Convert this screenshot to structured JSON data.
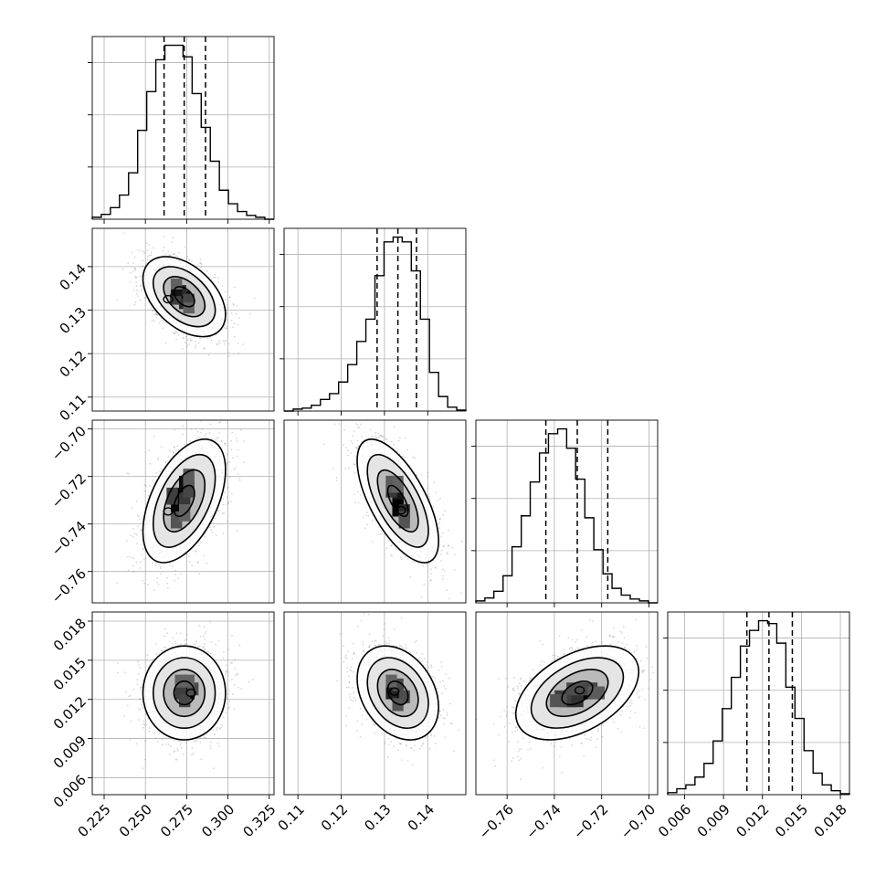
{
  "figure": {
    "title": "",
    "grid": true,
    "colors": {
      "line": "#000000",
      "points": "#8c8c8c",
      "grid": "#b0b0b0",
      "background": "#ffffff"
    }
  },
  "chart_data": {
    "type": "corner",
    "parameters": [
      {
        "name": "",
        "range": [
          0.2178,
          0.3279
        ],
        "ticks": [
          0.225,
          0.25,
          0.275,
          0.3,
          0.325
        ],
        "tick_labels": [
          "0.225",
          "0.250",
          "0.275",
          "0.300",
          "0.325"
        ]
      },
      {
        "name": "",
        "range": [
          0.1068,
          0.1488
        ],
        "ticks": [
          0.11,
          0.12,
          0.13,
          0.14
        ],
        "tick_labels": [
          "0.11",
          "0.12",
          "0.13",
          "0.14"
        ]
      },
      {
        "name": "",
        "range": [
          -0.7732,
          -0.6963
        ],
        "ticks": [
          -0.76,
          -0.74,
          -0.72,
          -0.7
        ],
        "tick_labels": [
          "−0.76",
          "−0.74",
          "−0.72",
          "−0.70"
        ]
      },
      {
        "name": "",
        "range": [
          0.0047,
          0.0187
        ],
        "ticks": [
          0.006,
          0.009,
          0.012,
          0.015,
          0.018
        ],
        "tick_labels": [
          "0.006",
          "0.009",
          "0.012",
          "0.015",
          "0.018"
        ]
      }
    ],
    "marginals": [
      {
        "bin_edges": [
          0.2178,
          0.2233,
          0.2288,
          0.2343,
          0.2398,
          0.2453,
          0.2508,
          0.2563,
          0.2618,
          0.2673,
          0.2728,
          0.2783,
          0.2838,
          0.2893,
          0.2948,
          0.3003,
          0.3058,
          0.3113,
          0.3168,
          0.3223,
          0.3279
        ],
        "counts": [
          2,
          5,
          12,
          25,
          48,
          92,
          132,
          165,
          180,
          180,
          168,
          130,
          95,
          60,
          30,
          16,
          8,
          4,
          2,
          0
        ],
        "quantiles": [
          0.2613,
          0.2735,
          0.2864
        ]
      },
      {
        "bin_edges": [
          0.1068,
          0.1089,
          0.111,
          0.1131,
          0.1152,
          0.1173,
          0.1194,
          0.1215,
          0.1236,
          0.1257,
          0.1278,
          0.1299,
          0.132,
          0.1341,
          0.1362,
          0.1383,
          0.1404,
          0.1425,
          0.1446,
          0.1467,
          0.1488
        ],
        "counts": [
          0,
          2,
          3,
          6,
          12,
          18,
          30,
          48,
          72,
          95,
          140,
          175,
          180,
          175,
          145,
          95,
          40,
          15,
          4,
          1
        ],
        "quantiles": [
          0.1283,
          0.1331,
          0.1374
        ]
      },
      {
        "bin_edges": [
          -0.7732,
          -0.7694,
          -0.7656,
          -0.7617,
          -0.7579,
          -0.754,
          -0.7502,
          -0.7463,
          -0.7425,
          -0.7386,
          -0.7348,
          -0.731,
          -0.7271,
          -0.7233,
          -0.7194,
          -0.7156,
          -0.7117,
          -0.7079,
          -0.704,
          -0.7002,
          -0.6963
        ],
        "counts": [
          2,
          5,
          12,
          28,
          58,
          90,
          125,
          155,
          175,
          180,
          160,
          128,
          88,
          55,
          30,
          15,
          8,
          4,
          2,
          0
        ],
        "quantiles": [
          -0.7436,
          -0.7303,
          -0.7174
        ]
      },
      {
        "bin_edges": [
          0.0047,
          0.0054,
          0.0061,
          0.0068,
          0.0075,
          0.0082,
          0.0089,
          0.0096,
          0.0103,
          0.011,
          0.0117,
          0.0124,
          0.0131,
          0.0138,
          0.0145,
          0.0152,
          0.0159,
          0.0166,
          0.0173,
          0.018,
          0.0187
        ],
        "counts": [
          2,
          6,
          10,
          18,
          32,
          55,
          88,
          120,
          152,
          168,
          178,
          175,
          155,
          110,
          78,
          45,
          22,
          10,
          4,
          1
        ],
        "quantiles": [
          0.0108,
          0.0125,
          0.0143
        ]
      }
    ],
    "joint": [
      {
        "x": 0,
        "y": 1,
        "mean": [
          0.2735,
          0.1331
        ],
        "sd": [
          0.0125,
          0.0046
        ],
        "corr": -0.45,
        "cmin": [
          0.2638,
          0.1325
        ],
        "density": [
          [
            0.2738,
            0.1331,
            0.95
          ],
          [
            0.2713,
            0.1345,
            0.7
          ],
          [
            0.2738,
            0.1315,
            0.7
          ],
          [
            0.2683,
            0.1325,
            0.55
          ],
          [
            0.2688,
            0.1345,
            0.85
          ],
          [
            0.2763,
            0.1325,
            0.5
          ],
          [
            0.2688,
            0.136,
            0.3
          ],
          [
            0.2763,
            0.1305,
            0.3
          ]
        ]
      },
      {
        "x": 0,
        "y": 2,
        "mean": [
          0.2735,
          -0.7303
        ],
        "sd": [
          0.0125,
          0.013
        ],
        "corr": 0.5,
        "cmin": [
          0.2638,
          -0.7347
        ],
        "density": [
          [
            0.2713,
            -0.7283,
            1.0
          ],
          [
            0.2738,
            -0.7233,
            0.9
          ],
          [
            0.2688,
            -0.7333,
            0.95
          ],
          [
            0.2738,
            -0.7303,
            0.6
          ],
          [
            0.2663,
            -0.7283,
            0.55
          ],
          [
            0.2763,
            -0.7253,
            0.5
          ],
          [
            0.2688,
            -0.7383,
            0.4
          ],
          [
            0.2738,
            -0.7353,
            0.3
          ],
          [
            0.2763,
            -0.7203,
            0.35
          ]
        ]
      },
      {
        "x": 1,
        "y": 2,
        "mean": [
          0.1331,
          -0.7303
        ],
        "sd": [
          0.0047,
          0.013
        ],
        "corr": -0.65,
        "cmin": [
          0.1338,
          -0.7342
        ],
        "density": [
          [
            0.1331,
            -0.7283,
            0.85
          ],
          [
            0.1331,
            -0.7333,
            1.0
          ],
          [
            0.1316,
            -0.7253,
            0.6
          ],
          [
            0.1346,
            -0.7353,
            0.7
          ],
          [
            0.1346,
            -0.7383,
            0.4
          ],
          [
            0.1316,
            -0.7233,
            0.35
          ],
          [
            0.1331,
            -0.7233,
            0.3
          ]
        ]
      },
      {
        "x": 0,
        "y": 3,
        "mean": [
          0.2735,
          0.0125
        ],
        "sd": [
          0.0125,
          0.0018
        ],
        "corr": 0.0,
        "cmin": [
          0.2776,
          0.0125
        ],
        "density": [
          [
            0.2738,
            0.0128,
            0.8
          ],
          [
            0.2763,
            0.0125,
            0.95
          ],
          [
            0.2713,
            0.0125,
            0.55
          ],
          [
            0.2738,
            0.0119,
            0.5
          ],
          [
            0.2788,
            0.0128,
            0.45
          ],
          [
            0.2763,
            0.0134,
            0.3
          ],
          [
            0.2713,
            0.0134,
            0.3
          ]
        ]
      },
      {
        "x": 1,
        "y": 3,
        "mean": [
          0.1331,
          0.0125
        ],
        "sd": [
          0.0047,
          0.0018
        ],
        "corr": -0.3,
        "cmin": [
          0.1323,
          0.0126
        ],
        "density": [
          [
            0.1331,
            0.0125,
            0.95
          ],
          [
            0.1316,
            0.0125,
            0.75
          ],
          [
            0.1331,
            0.0131,
            0.5
          ],
          [
            0.1346,
            0.0122,
            0.45
          ],
          [
            0.1331,
            0.0116,
            0.4
          ],
          [
            0.1316,
            0.0134,
            0.3
          ]
        ]
      },
      {
        "x": 2,
        "y": 3,
        "mean": [
          -0.7303,
          0.0125
        ],
        "sd": [
          0.013,
          0.0018
        ],
        "corr": 0.45,
        "cmin": [
          -0.7293,
          0.0127
        ],
        "density": [
          [
            -0.7283,
            0.0125,
            1.0
          ],
          [
            -0.7343,
            0.0119,
            0.75
          ],
          [
            -0.7313,
            0.0119,
            0.65
          ],
          [
            -0.7363,
            0.0122,
            0.55
          ],
          [
            -0.7253,
            0.0128,
            0.5
          ],
          [
            -0.7223,
            0.0125,
            0.35
          ],
          [
            -0.7313,
            0.0128,
            0.45
          ],
          [
            -0.7383,
            0.0119,
            0.4
          ]
        ]
      }
    ]
  }
}
